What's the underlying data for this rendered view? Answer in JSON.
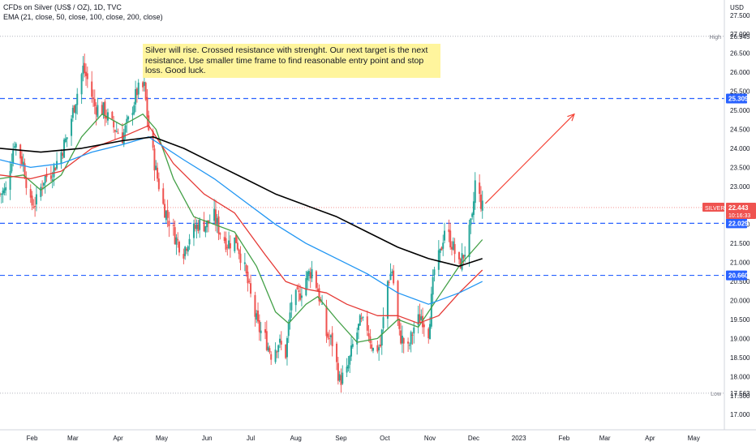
{
  "legend": {
    "title": "CFDs on Silver (US$ / OZ), 1D, TVC",
    "indicators": "EMA (21, close, 50, close, 100, close, 200, close)"
  },
  "note": {
    "text": "Silver will rise. Crossed resistance with strenght. Our next target is the next resistance. Use smaller time frame to find reasonable entry point and stop loss. Good luck."
  },
  "colors": {
    "up": "#26a69a",
    "down": "#ef5350",
    "ema21": "#43a047",
    "ema50": "#e53935",
    "ema100": "#2196f3",
    "ema200": "#000000",
    "level": "#2962ff",
    "arrow": "#f44336",
    "price_badge": "#ef5350",
    "level_badge": "#2962ff"
  },
  "chart_data": {
    "type": "candlestick",
    "title": "CFDs on Silver (US$ / OZ), 1D, TVC",
    "currency_label": "USD",
    "y_range": [
      16.6,
      27.9
    ],
    "y_ticks": [
      17.0,
      17.5,
      18.0,
      18.5,
      19.0,
      19.5,
      20.0,
      20.5,
      21.0,
      21.5,
      22.0,
      22.5,
      23.0,
      23.5,
      24.0,
      24.5,
      25.0,
      25.5,
      26.0,
      26.5,
      27.0,
      27.5
    ],
    "x_ticks": [
      {
        "label": "Feb",
        "date": "2022-02-01"
      },
      {
        "label": "Mar",
        "date": "2022-03-01"
      },
      {
        "label": "Apr",
        "date": "2022-04-01"
      },
      {
        "label": "May",
        "date": "2022-05-01"
      },
      {
        "label": "Jun",
        "date": "2022-06-01"
      },
      {
        "label": "Jul",
        "date": "2022-07-01"
      },
      {
        "label": "Aug",
        "date": "2022-08-01"
      },
      {
        "label": "Sep",
        "date": "2022-09-01"
      },
      {
        "label": "Oct",
        "date": "2022-10-01"
      },
      {
        "label": "Nov",
        "date": "2022-11-01"
      },
      {
        "label": "Dec",
        "date": "2022-12-01"
      },
      {
        "label": "2023",
        "date": "2023-01-01"
      },
      {
        "label": "Feb",
        "date": "2023-02-01"
      },
      {
        "label": "Mar",
        "date": "2023-03-01"
      },
      {
        "label": "Apr",
        "date": "2023-04-01"
      },
      {
        "label": "May",
        "date": "2023-05-01"
      }
    ],
    "x_range": [
      "2022-01-10",
      "2023-05-22"
    ],
    "price_path": [
      [
        "2022-01-10",
        22.8
      ],
      [
        "2022-01-14",
        22.9
      ],
      [
        "2022-01-20",
        24.2
      ],
      [
        "2022-01-26",
        23.6
      ],
      [
        "2022-01-31",
        22.5
      ],
      [
        "2022-02-04",
        22.6
      ],
      [
        "2022-02-09",
        23.2
      ],
      [
        "2022-02-15",
        23.4
      ],
      [
        "2022-02-21",
        23.9
      ],
      [
        "2022-02-25",
        24.3
      ],
      [
        "2022-03-03",
        25.3
      ],
      [
        "2022-03-08",
        26.1
      ],
      [
        "2022-03-11",
        25.8
      ],
      [
        "2022-03-16",
        25.1
      ],
      [
        "2022-03-22",
        25.0
      ],
      [
        "2022-03-28",
        24.6
      ],
      [
        "2022-04-04",
        24.3
      ],
      [
        "2022-04-08",
        24.7
      ],
      [
        "2022-04-14",
        25.5
      ],
      [
        "2022-04-19",
        25.6
      ],
      [
        "2022-04-22",
        24.5
      ],
      [
        "2022-04-27",
        23.4
      ],
      [
        "2022-05-02",
        22.5
      ],
      [
        "2022-05-06",
        22.1
      ],
      [
        "2022-05-11",
        21.6
      ],
      [
        "2022-05-16",
        21.3
      ],
      [
        "2022-05-20",
        21.7
      ],
      [
        "2022-05-26",
        22.0
      ],
      [
        "2022-06-01",
        22.0
      ],
      [
        "2022-06-06",
        22.2
      ],
      [
        "2022-06-10",
        21.8
      ],
      [
        "2022-06-15",
        21.5
      ],
      [
        "2022-06-21",
        21.6
      ],
      [
        "2022-06-27",
        20.8
      ],
      [
        "2022-07-01",
        20.1
      ],
      [
        "2022-07-06",
        19.3
      ],
      [
        "2022-07-11",
        19.0
      ],
      [
        "2022-07-15",
        18.6
      ],
      [
        "2022-07-20",
        18.9
      ],
      [
        "2022-07-25",
        18.6
      ],
      [
        "2022-07-29",
        20.0
      ],
      [
        "2022-08-03",
        20.1
      ],
      [
        "2022-08-08",
        20.6
      ],
      [
        "2022-08-12",
        20.8
      ],
      [
        "2022-08-16",
        20.3
      ],
      [
        "2022-08-22",
        19.1
      ],
      [
        "2022-08-26",
        18.9
      ],
      [
        "2022-08-31",
        17.9
      ],
      [
        "2022-09-05",
        18.1
      ],
      [
        "2022-09-09",
        18.8
      ],
      [
        "2022-09-14",
        19.4
      ],
      [
        "2022-09-19",
        19.3
      ],
      [
        "2022-09-23",
        18.7
      ],
      [
        "2022-09-28",
        18.8
      ],
      [
        "2022-10-03",
        20.5
      ],
      [
        "2022-10-06",
        20.8
      ],
      [
        "2022-10-11",
        19.1
      ],
      [
        "2022-10-17",
        18.7
      ],
      [
        "2022-10-21",
        19.3
      ],
      [
        "2022-10-26",
        19.6
      ],
      [
        "2022-10-31",
        19.2
      ],
      [
        "2022-11-04",
        20.8
      ],
      [
        "2022-11-08",
        21.2
      ],
      [
        "2022-11-11",
        21.9
      ],
      [
        "2022-11-16",
        21.5
      ],
      [
        "2022-11-21",
        20.9
      ],
      [
        "2022-11-25",
        21.3
      ],
      [
        "2022-11-30",
        22.1
      ],
      [
        "2022-12-02",
        23.1
      ],
      [
        "2022-12-05",
        22.7
      ],
      [
        "2022-12-07",
        22.44
      ]
    ],
    "ema_series": [
      {
        "name": "EMA 21",
        "colorKey": "ema21",
        "points": [
          [
            "2022-01-10",
            23.2
          ],
          [
            "2022-01-26",
            23.3
          ],
          [
            "2022-02-07",
            22.9
          ],
          [
            "2022-02-21",
            23.3
          ],
          [
            "2022-03-07",
            24.3
          ],
          [
            "2022-03-21",
            24.9
          ],
          [
            "2022-04-04",
            24.6
          ],
          [
            "2022-04-18",
            24.9
          ],
          [
            "2022-04-27",
            24.5
          ],
          [
            "2022-05-09",
            23.2
          ],
          [
            "2022-05-23",
            22.2
          ],
          [
            "2022-06-06",
            22.0
          ],
          [
            "2022-06-20",
            21.8
          ],
          [
            "2022-07-05",
            20.9
          ],
          [
            "2022-07-18",
            19.7
          ],
          [
            "2022-07-27",
            19.4
          ],
          [
            "2022-08-08",
            19.9
          ],
          [
            "2022-08-16",
            20.1
          ],
          [
            "2022-08-29",
            19.5
          ],
          [
            "2022-09-12",
            18.9
          ],
          [
            "2022-09-26",
            19.0
          ],
          [
            "2022-10-10",
            19.5
          ],
          [
            "2022-10-24",
            19.3
          ],
          [
            "2022-11-07",
            20.1
          ],
          [
            "2022-11-21",
            20.9
          ],
          [
            "2022-12-07",
            21.6
          ]
        ]
      },
      {
        "name": "EMA 50",
        "colorKey": "ema50",
        "points": [
          [
            "2022-01-10",
            23.3
          ],
          [
            "2022-01-31",
            23.2
          ],
          [
            "2022-02-21",
            23.4
          ],
          [
            "2022-03-14",
            24.0
          ],
          [
            "2022-04-04",
            24.3
          ],
          [
            "2022-04-22",
            24.6
          ],
          [
            "2022-05-09",
            23.6
          ],
          [
            "2022-05-30",
            22.8
          ],
          [
            "2022-06-20",
            22.3
          ],
          [
            "2022-07-11",
            21.2
          ],
          [
            "2022-07-25",
            20.5
          ],
          [
            "2022-08-08",
            20.3
          ],
          [
            "2022-08-22",
            20.2
          ],
          [
            "2022-09-05",
            19.9
          ],
          [
            "2022-09-26",
            19.6
          ],
          [
            "2022-10-10",
            19.6
          ],
          [
            "2022-10-24",
            19.4
          ],
          [
            "2022-11-07",
            19.6
          ],
          [
            "2022-11-21",
            20.2
          ],
          [
            "2022-12-07",
            20.8
          ]
        ]
      },
      {
        "name": "EMA 100",
        "colorKey": "ema100",
        "points": [
          [
            "2022-01-10",
            23.7
          ],
          [
            "2022-01-31",
            23.5
          ],
          [
            "2022-02-21",
            23.6
          ],
          [
            "2022-03-14",
            23.9
          ],
          [
            "2022-04-04",
            24.1
          ],
          [
            "2022-04-22",
            24.3
          ],
          [
            "2022-05-16",
            23.7
          ],
          [
            "2022-06-06",
            23.2
          ],
          [
            "2022-06-27",
            22.6
          ],
          [
            "2022-07-18",
            22.0
          ],
          [
            "2022-08-08",
            21.5
          ],
          [
            "2022-08-29",
            21.1
          ],
          [
            "2022-09-19",
            20.7
          ],
          [
            "2022-10-10",
            20.2
          ],
          [
            "2022-10-31",
            19.9
          ],
          [
            "2022-11-21",
            20.2
          ],
          [
            "2022-12-07",
            20.5
          ]
        ]
      },
      {
        "name": "EMA 200",
        "colorKey": "ema200",
        "points": [
          [
            "2022-01-10",
            24.0
          ],
          [
            "2022-02-07",
            23.9
          ],
          [
            "2022-03-07",
            24.0
          ],
          [
            "2022-04-04",
            24.2
          ],
          [
            "2022-04-25",
            24.3
          ],
          [
            "2022-05-16",
            24.0
          ],
          [
            "2022-06-06",
            23.6
          ],
          [
            "2022-06-27",
            23.2
          ],
          [
            "2022-07-18",
            22.8
          ],
          [
            "2022-08-08",
            22.5
          ],
          [
            "2022-08-29",
            22.2
          ],
          [
            "2022-09-19",
            21.8
          ],
          [
            "2022-10-10",
            21.4
          ],
          [
            "2022-10-31",
            21.1
          ],
          [
            "2022-11-21",
            20.9
          ],
          [
            "2022-12-07",
            21.1
          ]
        ]
      }
    ],
    "levels": [
      {
        "name": "resistance-2",
        "price": 25.309,
        "label": "25.309"
      },
      {
        "name": "resistance-1",
        "price": 22.029,
        "label": "22.029"
      },
      {
        "name": "support",
        "price": 20.66,
        "label": "20.660"
      }
    ],
    "high": {
      "label": "High",
      "price": 26.945,
      "value_label": "26.945"
    },
    "low": {
      "label": "Low",
      "price": 17.563,
      "value_label": "17.563"
    },
    "last_price": {
      "symbol": "SILVER",
      "price": 22.443,
      "value_label": "22.443",
      "countdown": "10:16:33"
    },
    "arrow": {
      "from": [
        "2022-12-09",
        22.55
      ],
      "to": [
        "2023-02-08",
        24.9
      ]
    }
  }
}
